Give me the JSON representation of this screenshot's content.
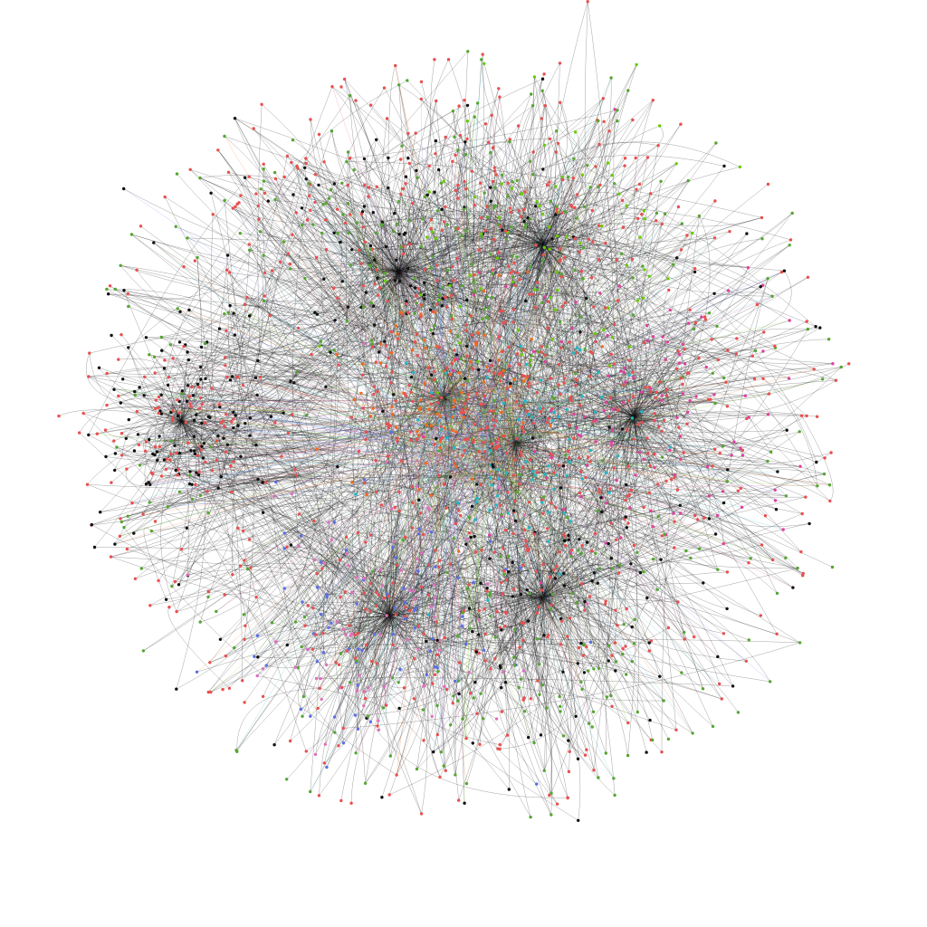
{
  "graph": {
    "type": "network-graph",
    "layout": "force-directed",
    "edge_style": "curved",
    "background_color": "#ffffff",
    "edge_color": "#111111",
    "node_palette": {
      "red": "#e8504f",
      "green": "#55a632",
      "black": "#111111",
      "orange": "#f26a1d",
      "lime": "#66cc00",
      "cyan": "#22b8c8",
      "magenta": "#e040a0",
      "blue": "#5a6ee8",
      "pink": "#e070c0"
    },
    "clusters": [
      {
        "id": "c-top-center",
        "color_mix": [
          "red",
          "green",
          "black"
        ]
      },
      {
        "id": "c-top-right-lime",
        "color_mix": [
          "green",
          "lime",
          "red"
        ]
      },
      {
        "id": "c-left-dense",
        "color_mix": [
          "black",
          "red"
        ]
      },
      {
        "id": "c-center-orange",
        "color_mix": [
          "orange",
          "red"
        ]
      },
      {
        "id": "c-center-cyan",
        "color_mix": [
          "cyan",
          "red"
        ]
      },
      {
        "id": "c-right-magenta",
        "color_mix": [
          "magenta",
          "red"
        ]
      },
      {
        "id": "c-bottom-blue",
        "color_mix": [
          "blue",
          "pink",
          "red"
        ]
      },
      {
        "id": "c-bottom-right",
        "color_mix": [
          "red",
          "black",
          "green"
        ]
      }
    ]
  }
}
